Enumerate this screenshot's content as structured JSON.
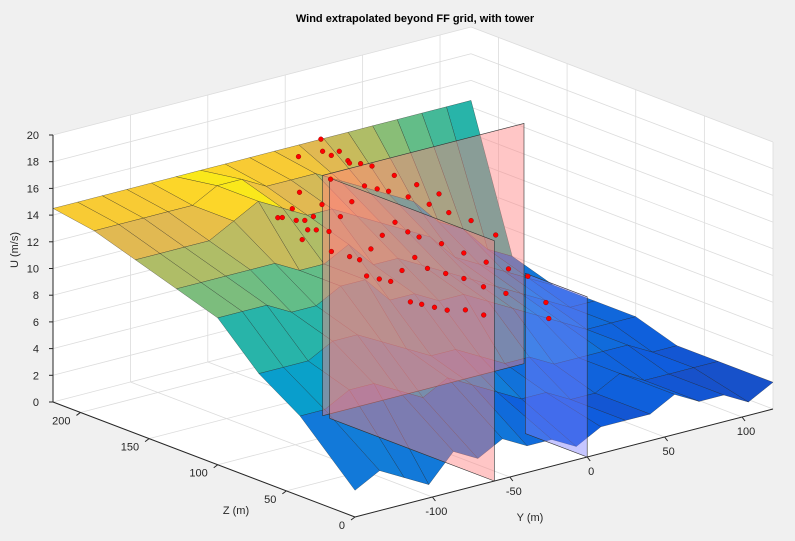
{
  "chart_data": {
    "type": "surface3d",
    "title": "Wind extrapolated beyond FF grid, with tower",
    "xlabel": "Y (m)",
    "ylabel": "Z (m)",
    "zlabel": "U (m/s)",
    "y_range": [
      -150,
      120
    ],
    "z_range": [
      0,
      220
    ],
    "u_range": [
      0,
      20
    ],
    "y_ticks": [
      "-100",
      "-50",
      "0",
      "50",
      "100"
    ],
    "z_ticks": [
      "0",
      "50",
      "100",
      "150",
      "200"
    ],
    "u_ticks": [
      "0",
      "2",
      "4",
      "6",
      "8",
      "10",
      "12",
      "14",
      "16",
      "18",
      "20"
    ],
    "grid": true,
    "colormap": "parula",
    "surface_rows": [
      {
        "z": 0,
        "u": [
          2.0,
          3.0,
          2.0,
          1.0,
          3.0,
          2.0,
          3.0,
          2.0,
          2.0,
          1.0,
          2.0,
          2.0,
          2.0,
          3.0,
          2.0,
          2.0,
          1.0,
          2.0
        ]
      },
      {
        "z": 40,
        "u": [
          6.0,
          6.0,
          7.0,
          7.0,
          6.0,
          5.0,
          6.0,
          5.0,
          4.0,
          3.0,
          3.0,
          2.0,
          2.0,
          3.0,
          2.0,
          2.0,
          2.0,
          2.0
        ]
      },
      {
        "z": 70,
        "u": [
          8.0,
          8.0,
          8.0,
          9.0,
          9.0,
          8.0,
          7.0,
          6.0,
          6.0,
          5.0,
          4.0,
          4.0,
          3.0,
          3.0,
          3.0,
          3.0,
          2.0,
          2.0
        ]
      },
      {
        "z": 100,
        "u": [
          11.0,
          11.0,
          11.0,
          10.0,
          10.0,
          11.0,
          11.0,
          9.0,
          9.0,
          8.0,
          8.0,
          7.0,
          6.0,
          5.0,
          4.0,
          3.0,
          3.0,
          3.0
        ]
      },
      {
        "z": 130,
        "u": [
          12.0,
          12.0,
          12.0,
          12.0,
          12.0,
          11.0,
          11.0,
          12.0,
          10.0,
          10.0,
          9.0,
          8.0,
          7.0,
          6.0,
          5.0,
          4.0,
          3.0,
          3.0
        ]
      },
      {
        "z": 160,
        "u": [
          13.0,
          13.0,
          13.0,
          13.0,
          14.0,
          15.0,
          14.0,
          13.0,
          13.0,
          12.0,
          11.0,
          10.0,
          9.0,
          7.0,
          6.0,
          5.0,
          4.0,
          3.0
        ]
      },
      {
        "z": 190,
        "u": [
          14.0,
          14.0,
          14.0,
          14.0,
          14.0,
          15.0,
          15.0,
          14.0,
          14.0,
          14.0,
          13.0,
          12.0,
          11.0,
          10.0,
          8.0,
          7.0,
          5.0,
          4.0
        ]
      },
      {
        "z": 220,
        "u": [
          14.5,
          14.5,
          14.5,
          14.5,
          14.5,
          14.5,
          14.5,
          14.5,
          14.5,
          14.5,
          14.5,
          14.5,
          14.5,
          14.5,
          14.5,
          14.5,
          14.5,
          14.5
        ]
      }
    ],
    "planes": [
      {
        "name": "",
        "type": "z",
        "value": 125,
        "y_range": [
          -60,
          70
        ],
        "u_range": [
          0,
          18
        ],
        "color": "#ff8080"
      },
      {
        "name": "",
        "type": "y",
        "value": -60,
        "z_range": [
          0,
          120
        ],
        "u_range": [
          0,
          18
        ],
        "color": "#ff8080"
      },
      {
        "name": "",
        "type": "y",
        "value": 0,
        "z_range": [
          0,
          45
        ],
        "u_range": [
          0,
          12
        ],
        "color": "#8080ff"
      }
    ],
    "tower_points_color": "#ff0000",
    "tower_points": [
      {
        "y": -55,
        "z": 150,
        "u": 13.5
      },
      {
        "y": -45,
        "z": 155,
        "u": 13.0
      },
      {
        "y": -35,
        "z": 160,
        "u": 12.8
      },
      {
        "y": -25,
        "z": 165,
        "u": 13.2
      },
      {
        "y": -15,
        "z": 170,
        "u": 14.6
      },
      {
        "y": -5,
        "z": 175,
        "u": 16.2
      },
      {
        "y": 5,
        "z": 180,
        "u": 15.0
      },
      {
        "y": 15,
        "z": 182,
        "u": 14.4
      },
      {
        "y": 25,
        "z": 185,
        "u": 13.8
      },
      {
        "y": 35,
        "z": 180,
        "u": 13.0
      },
      {
        "y": 45,
        "z": 175,
        "u": 12.2
      },
      {
        "y": 55,
        "z": 170,
        "u": 11.4
      },
      {
        "y": -50,
        "z": 130,
        "u": 11.8
      },
      {
        "y": -40,
        "z": 128,
        "u": 11.2
      },
      {
        "y": -30,
        "z": 132,
        "u": 10.5
      },
      {
        "y": -20,
        "z": 135,
        "u": 10.9
      },
      {
        "y": -10,
        "z": 138,
        "u": 11.5
      },
      {
        "y": 0,
        "z": 140,
        "u": 12.1
      },
      {
        "y": 10,
        "z": 142,
        "u": 11.0
      },
      {
        "y": 20,
        "z": 145,
        "u": 10.2
      },
      {
        "y": 30,
        "z": 140,
        "u": 9.6
      },
      {
        "y": 40,
        "z": 135,
        "u": 8.8
      },
      {
        "y": 50,
        "z": 130,
        "u": 8.0
      },
      {
        "y": 60,
        "z": 125,
        "u": 7.4
      },
      {
        "y": -45,
        "z": 110,
        "u": 10.6
      },
      {
        "y": -35,
        "z": 112,
        "u": 10.0
      },
      {
        "y": -25,
        "z": 115,
        "u": 9.4
      },
      {
        "y": -15,
        "z": 118,
        "u": 9.8
      },
      {
        "y": -5,
        "z": 120,
        "u": 10.4
      },
      {
        "y": 5,
        "z": 122,
        "u": 9.2
      },
      {
        "y": 15,
        "z": 120,
        "u": 8.6
      },
      {
        "y": 25,
        "z": 118,
        "u": 8.0
      },
      {
        "y": 35,
        "z": 115,
        "u": 7.2
      },
      {
        "y": 45,
        "z": 110,
        "u": 6.6
      },
      {
        "y": -30,
        "z": 95,
        "u": 8.8
      },
      {
        "y": -20,
        "z": 98,
        "u": 8.2
      },
      {
        "y": -10,
        "z": 100,
        "u": 7.6
      },
      {
        "y": 0,
        "z": 102,
        "u": 7.0
      },
      {
        "y": 10,
        "z": 100,
        "u": 6.8
      },
      {
        "y": 20,
        "z": 98,
        "u": 6.2
      },
      {
        "y": -60,
        "z": 140,
        "u": 12.6
      },
      {
        "y": -58,
        "z": 160,
        "u": 13.4
      },
      {
        "y": -52,
        "z": 145,
        "u": 12.9
      },
      {
        "y": -42,
        "z": 150,
        "u": 12.4
      },
      {
        "y": -32,
        "z": 152,
        "u": 11.9
      },
      {
        "y": -22,
        "z": 155,
        "u": 12.6
      },
      {
        "y": -12,
        "z": 158,
        "u": 13.3
      },
      {
        "y": -2,
        "z": 160,
        "u": 14.1
      },
      {
        "y": 8,
        "z": 162,
        "u": 13.5
      },
      {
        "y": 18,
        "z": 165,
        "u": 12.9
      },
      {
        "y": 28,
        "z": 162,
        "u": 12.3
      },
      {
        "y": 38,
        "z": 158,
        "u": 11.6
      },
      {
        "y": 48,
        "z": 155,
        "u": 10.8
      },
      {
        "y": 58,
        "z": 150,
        "u": 10.1
      },
      {
        "y": 65,
        "z": 140,
        "u": 9.2
      },
      {
        "y": 68,
        "z": 120,
        "u": 6.8
      },
      {
        "y": 62,
        "z": 100,
        "u": 5.8
      },
      {
        "y": 55,
        "z": 90,
        "u": 5.2
      },
      {
        "y": -8,
        "z": 185,
        "u": 16.8
      },
      {
        "y": -18,
        "z": 190,
        "u": 15.6
      },
      {
        "y": 2,
        "z": 195,
        "u": 15.2
      },
      {
        "y": 12,
        "z": 200,
        "u": 14.4
      },
      {
        "y": 22,
        "z": 198,
        "u": 13.6
      },
      {
        "y": -28,
        "z": 178,
        "u": 13.7
      },
      {
        "y": -38,
        "z": 172,
        "u": 13.0
      },
      {
        "y": -48,
        "z": 168,
        "u": 12.8
      }
    ]
  }
}
